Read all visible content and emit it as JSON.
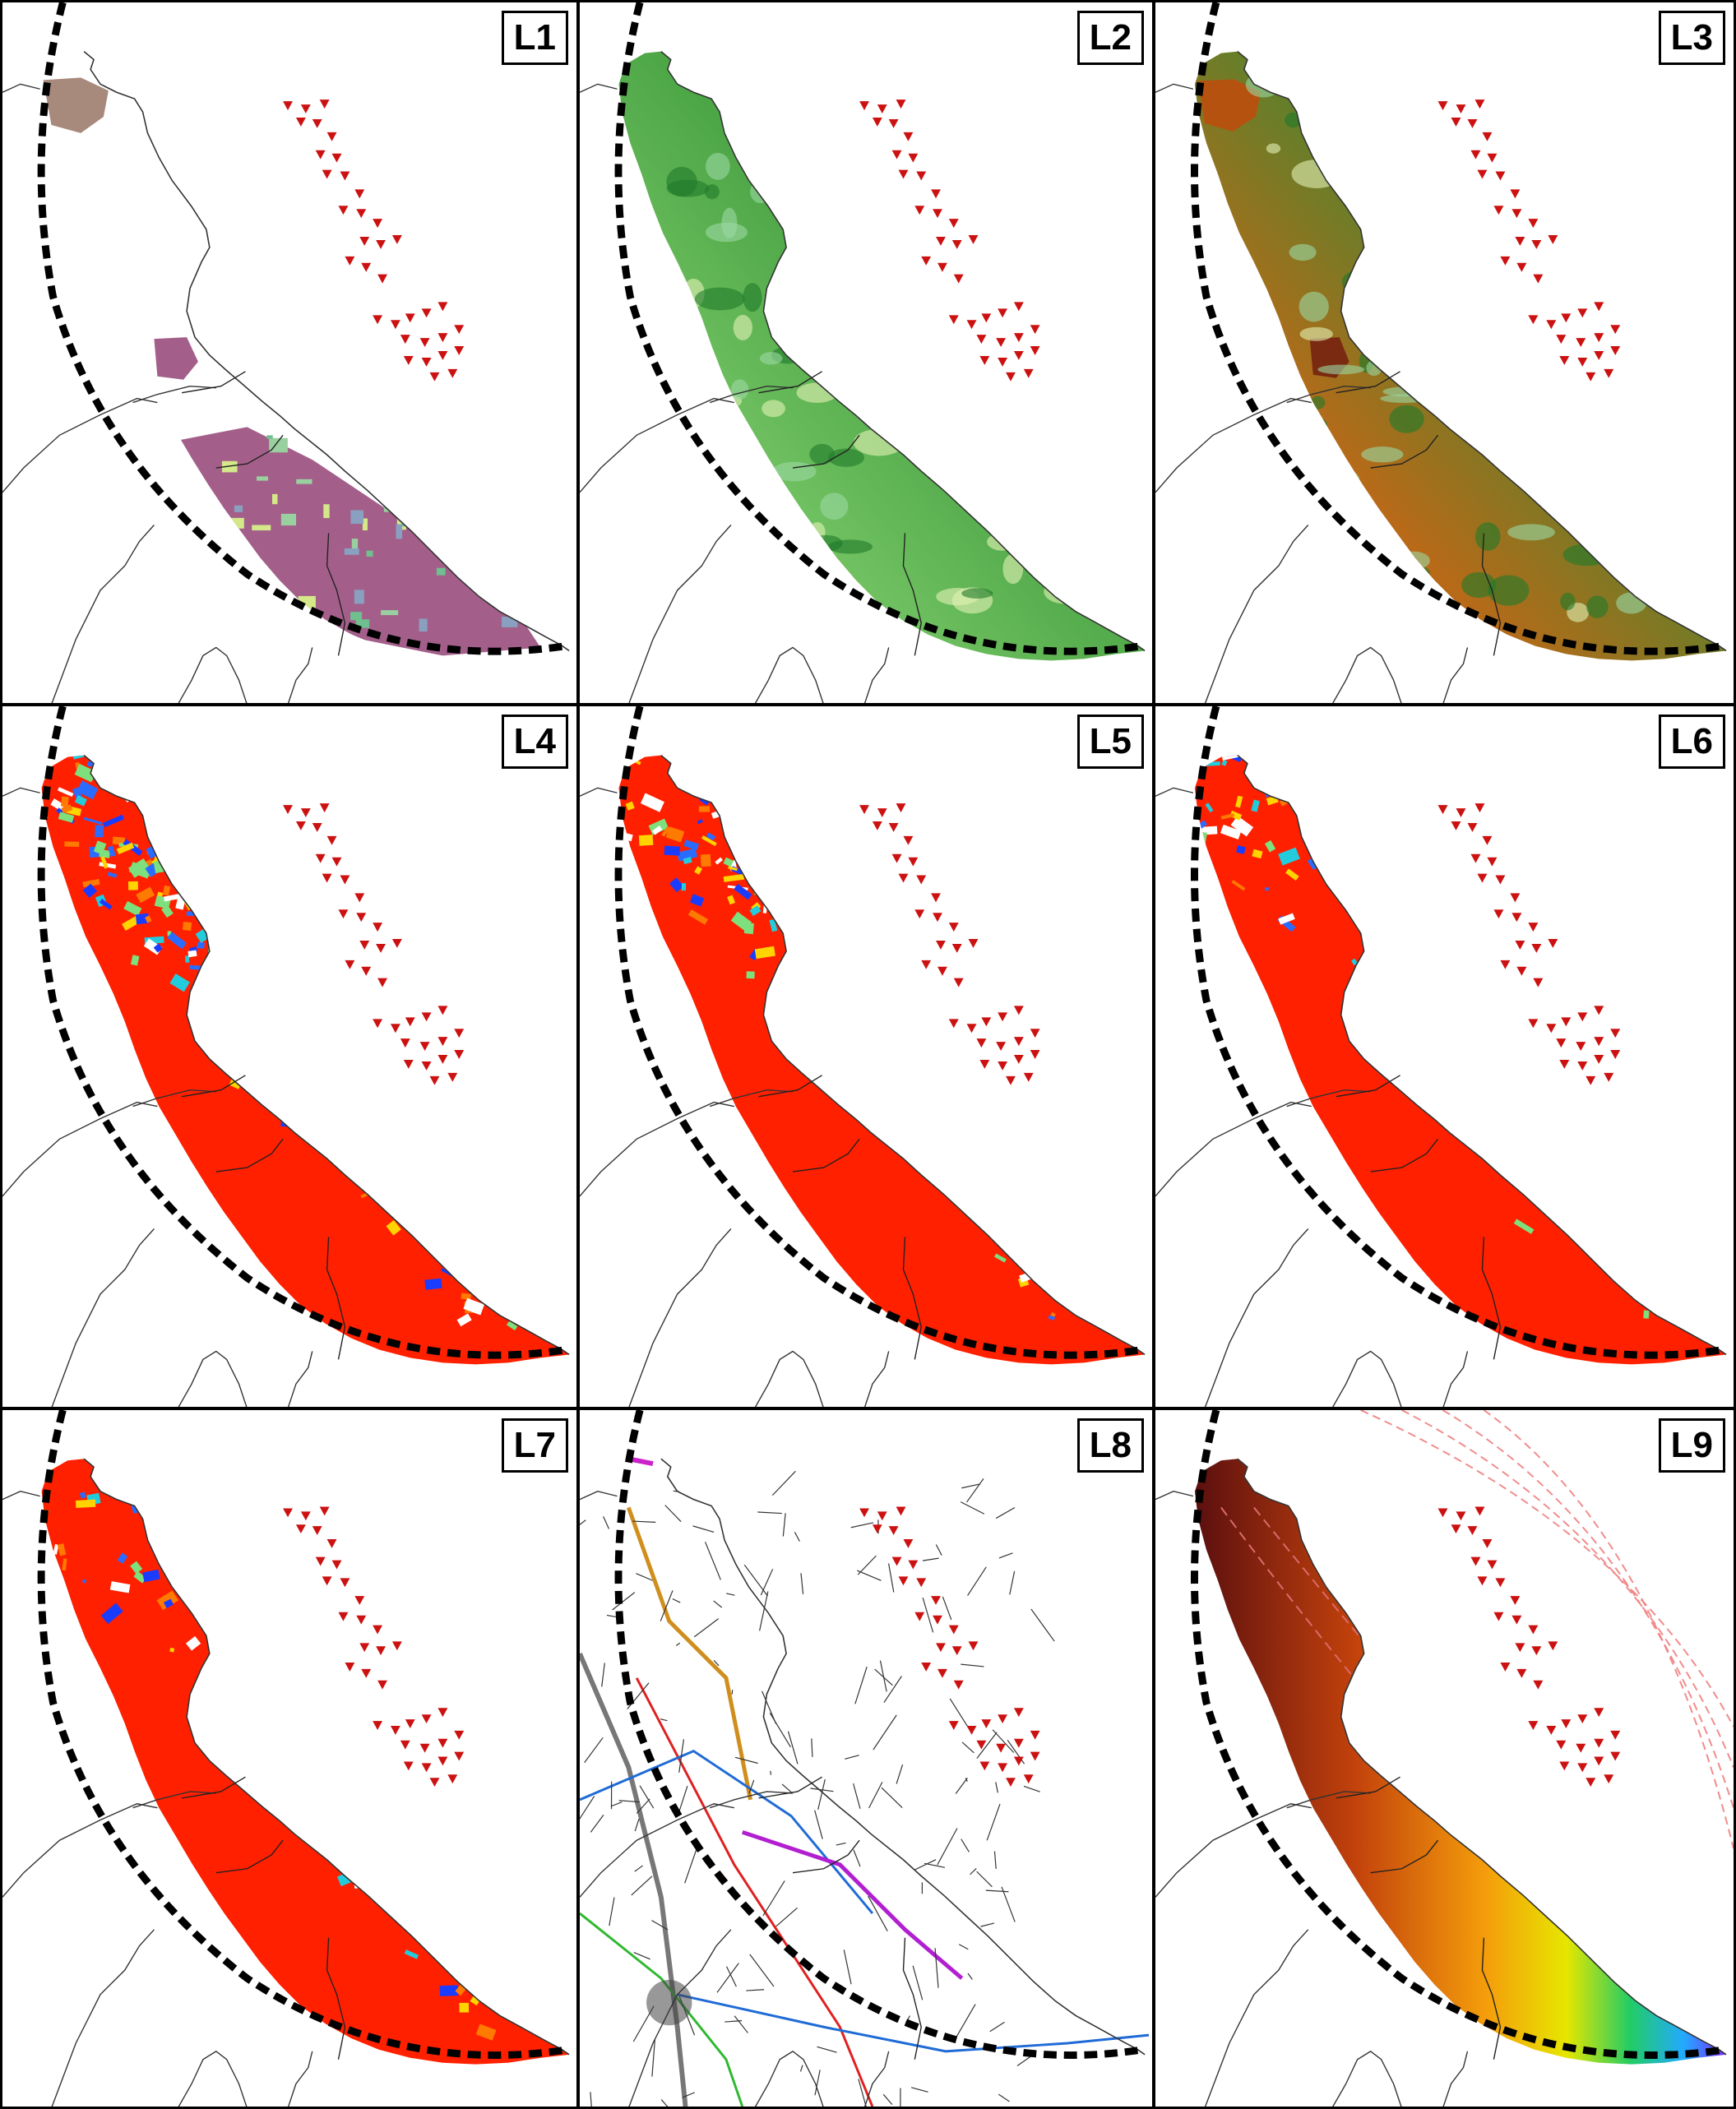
{
  "figure": {
    "panels": [
      {
        "id": "L1",
        "label": "L1",
        "layer": "landuse"
      },
      {
        "id": "L2",
        "label": "L2",
        "layer": "elevation"
      },
      {
        "id": "L3",
        "label": "L3",
        "layer": "elevation-composite"
      },
      {
        "id": "L4",
        "label": "L4",
        "layer": "visibility"
      },
      {
        "id": "L5",
        "label": "L5",
        "layer": "visibility"
      },
      {
        "id": "L6",
        "label": "L6",
        "layer": "visibility"
      },
      {
        "id": "L7",
        "label": "L7",
        "layer": "visibility"
      },
      {
        "id": "L8",
        "label": "L8",
        "layer": "infrastructure"
      },
      {
        "id": "L9",
        "label": "L9",
        "layer": "distance"
      }
    ],
    "turbine_marker_color": "#cc1111",
    "buffer_line_style": "black-dashed",
    "colors": {
      "landuse_urban": "#a88a7d",
      "landuse_agri": "#a35f8a",
      "elev_low": "#b9ecc0",
      "elev_mid": "#3d9a3a",
      "elev_high": "#d4a317",
      "visibility_high": "#ff2000",
      "visibility_low": "#2a6cff",
      "distance_far": "#5b0f0f",
      "distance_near": "#7b2bff"
    }
  }
}
